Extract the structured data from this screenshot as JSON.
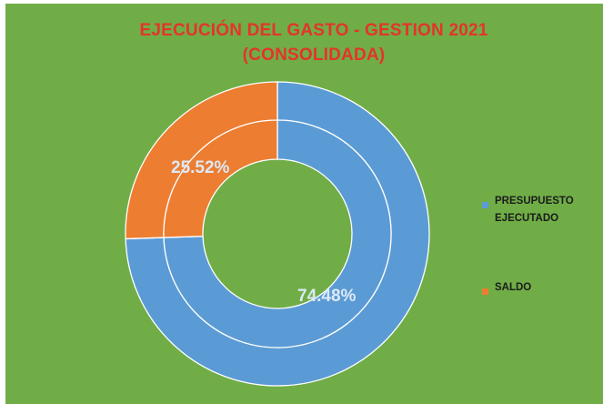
{
  "colors": {
    "background": "#70ad47",
    "title": "#e4342a",
    "ejecutado": "#5b9bd5",
    "saldo": "#ed7d31",
    "label": "#dde9f6"
  },
  "chart_data": {
    "type": "pie",
    "subtype": "doughnut",
    "title": "EJECUCIÓN DEL GASTO - GESTION 2021",
    "subtitle": "(CONSOLIDADA)",
    "categories": [
      "PRESUPUESTO EJECUTADO",
      "SALDO"
    ],
    "values": [
      74.48,
      25.52
    ],
    "data_labels": [
      "74.48%",
      "25.52%"
    ],
    "legend_position": "right"
  }
}
